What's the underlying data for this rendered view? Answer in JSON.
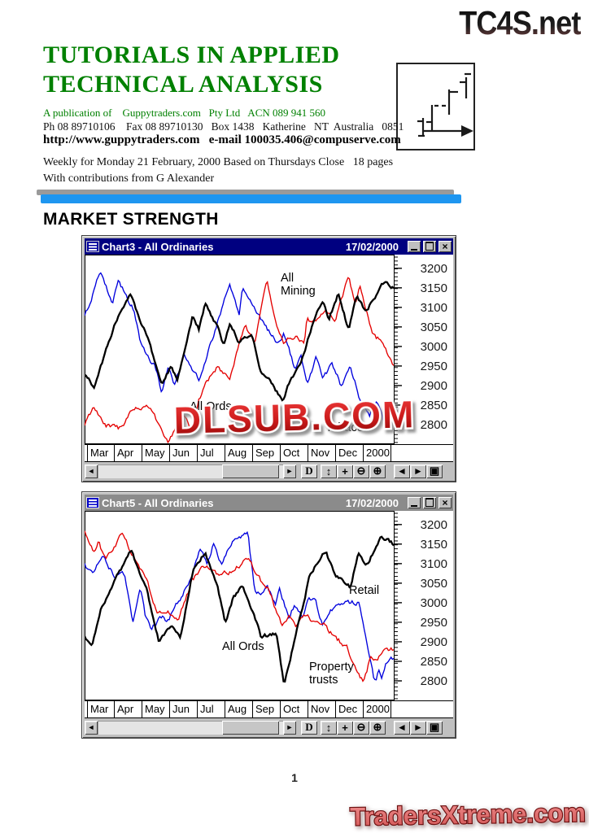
{
  "page": {
    "site_logo_top": "TC4S.net",
    "title_line1": "TUTORIALS IN APPLIED",
    "title_line2": "TECHNICAL ANALYSIS",
    "publisher_line": "A publication of    Guppytraders.com   Pty Ltd   ACN 089 941 560",
    "contact_line": "Ph 08 89710106    Fax 08 89710130   Box 1438   Katherine   NT  Australia   0851",
    "web_line": "http://www.guppytraders.com   e-mail 100035.406@compuserve.com",
    "issue_line": "Weekly for Monday 21 February, 2000 Based on Thursdays Close   18 pages",
    "contrib_line": "With contributions from G Alexander",
    "section_heading": "MARKET STRENGTH",
    "watermark": "DLSUB.COM",
    "page_number": "1",
    "site_logo_bottom": "TradersXtreme.com"
  },
  "colors": {
    "title_green": "#008000",
    "divider_blue": "#1e96f0",
    "titlebar_active": "#000080",
    "titlebar_inactive": "#8b8b8b",
    "watermark_red": "#c41b1b",
    "series_black": "#000000",
    "series_red": "#e40000",
    "series_blue": "#0000dd"
  },
  "icons": {
    "minimize": "_",
    "maximize": "",
    "close": "×",
    "scroll_left": "◄",
    "scroll_right": "►",
    "vertical_scale": "↕",
    "pan": "+",
    "zoom_out": "⊖",
    "zoom_in": "⊕",
    "prev_chart": "◄",
    "next_chart": "►",
    "window_tile": "▣"
  },
  "toolbar": {
    "d_label": "D"
  },
  "windows": [
    {
      "title": "Chart3 - All Ordinaries",
      "date": "17/02/2000",
      "active": true
    },
    {
      "title": "Chart5 - All Ordinaries",
      "date": "17/02/2000",
      "active": false
    }
  ],
  "chart_data": [
    {
      "type": "line",
      "title": "Chart3 - All Ordinaries",
      "x_labels": [
        "Mar",
        "Apr",
        "May",
        "Jun",
        "Jul",
        "Aug",
        "Sep",
        "Oct",
        "Nov",
        "Dec",
        "2000"
      ],
      "ylim": [
        2750,
        3235
      ],
      "yticks": [
        3200,
        3150,
        3100,
        3050,
        3000,
        2950,
        2900,
        2850,
        2800
      ],
      "grid": false,
      "legend": "inline-annotations",
      "series": [
        {
          "name": "Tobacco",
          "color": "#0000dd",
          "anchors": [
            [
              0,
              3075
            ],
            [
              0.05,
              3190
            ],
            [
              0.09,
              3110
            ],
            [
              0.11,
              3165
            ],
            [
              0.16,
              3095
            ],
            [
              0.18,
              3012
            ],
            [
              0.23,
              2943
            ],
            [
              0.25,
              2881
            ],
            [
              0.27,
              2950
            ],
            [
              0.29,
              2894
            ],
            [
              0.32,
              2977
            ],
            [
              0.37,
              2915
            ],
            [
              0.41,
              3012
            ],
            [
              0.47,
              3160
            ],
            [
              0.5,
              3081
            ],
            [
              0.51,
              3150
            ],
            [
              0.56,
              3081
            ],
            [
              0.62,
              3012
            ],
            [
              0.645,
              3033
            ],
            [
              0.68,
              2943
            ],
            [
              0.7,
              2977
            ],
            [
              0.72,
              2908
            ],
            [
              0.75,
              2971
            ],
            [
              0.77,
              2915
            ],
            [
              0.8,
              2955
            ],
            [
              0.83,
              2900
            ],
            [
              0.86,
              2945
            ],
            [
              0.89,
              2868
            ],
            [
              0.92,
              2820
            ],
            [
              0.945,
              2858
            ],
            [
              0.97,
              2800
            ],
            [
              1,
              2835
            ]
          ]
        },
        {
          "name": "All Mining",
          "color": "#e40000",
          "anchors": [
            [
              0,
              2798
            ],
            [
              0.03,
              2845
            ],
            [
              0.07,
              2800
            ],
            [
              0.12,
              2790
            ],
            [
              0.15,
              2830
            ],
            [
              0.2,
              2852
            ],
            [
              0.25,
              2790
            ],
            [
              0.27,
              2757
            ],
            [
              0.32,
              2825
            ],
            [
              0.35,
              2783
            ],
            [
              0.37,
              2867
            ],
            [
              0.4,
              2915
            ],
            [
              0.43,
              2950
            ],
            [
              0.47,
              2915
            ],
            [
              0.5,
              3010
            ],
            [
              0.52,
              3060
            ],
            [
              0.55,
              3000
            ],
            [
              0.59,
              3175
            ],
            [
              0.62,
              3054
            ],
            [
              0.645,
              3012
            ],
            [
              0.68,
              3026
            ],
            [
              0.71,
              3012
            ],
            [
              0.72,
              3075
            ],
            [
              0.74,
              3060
            ],
            [
              0.78,
              3090
            ],
            [
              0.81,
              3065
            ],
            [
              0.855,
              3180
            ],
            [
              0.875,
              3110
            ],
            [
              0.89,
              3150
            ],
            [
              0.93,
              3033
            ],
            [
              0.96,
              3012
            ],
            [
              1,
              2955
            ]
          ]
        },
        {
          "name": "All Ords",
          "color": "#000000",
          "anchors": [
            [
              0,
              2930
            ],
            [
              0.03,
              2895
            ],
            [
              0.07,
              2990
            ],
            [
              0.1,
              3060
            ],
            [
              0.15,
              3135
            ],
            [
              0.18,
              3060
            ],
            [
              0.2,
              3030
            ],
            [
              0.25,
              2905
            ],
            [
              0.28,
              2950
            ],
            [
              0.3,
              2910
            ],
            [
              0.35,
              3080
            ],
            [
              0.37,
              3045
            ],
            [
              0.39,
              3110
            ],
            [
              0.43,
              3050
            ],
            [
              0.45,
              3000
            ],
            [
              0.47,
              3060
            ],
            [
              0.5,
              3010
            ],
            [
              0.54,
              3035
            ],
            [
              0.57,
              2935
            ],
            [
              0.6,
              2915
            ],
            [
              0.64,
              2857
            ],
            [
              0.66,
              2905
            ],
            [
              0.7,
              2960
            ],
            [
              0.74,
              3065
            ],
            [
              0.77,
              3115
            ],
            [
              0.79,
              3070
            ],
            [
              0.82,
              3135
            ],
            [
              0.855,
              3040
            ],
            [
              0.88,
              3130
            ],
            [
              0.91,
              3090
            ],
            [
              0.95,
              3140
            ],
            [
              0.97,
              3168
            ],
            [
              1,
              3150
            ]
          ]
        }
      ],
      "annotations": [
        {
          "lines": [
            "All",
            "Mining"
          ],
          "x": 0.635,
          "y": 3192
        },
        {
          "lines": [
            "All Ords"
          ],
          "x": 0.34,
          "y": 2862
        },
        {
          "lines": [
            "Tobacco"
          ],
          "x": 0.78,
          "y": 2808
        }
      ]
    },
    {
      "type": "line",
      "title": "Chart5 - All Ordinaries",
      "x_labels": [
        "Mar",
        "Apr",
        "May",
        "Jun",
        "Jul",
        "Aug",
        "Sep",
        "Oct",
        "Nov",
        "Dec",
        "2000"
      ],
      "ylim": [
        2750,
        3235
      ],
      "yticks": [
        3200,
        3150,
        3100,
        3050,
        3000,
        2950,
        2900,
        2850,
        2800
      ],
      "grid": false,
      "legend": "inline-annotations",
      "series": [
        {
          "name": "Retail",
          "color": "#0000dd",
          "anchors": [
            [
              0,
              3096
            ],
            [
              0.025,
              3075
            ],
            [
              0.06,
              3117
            ],
            [
              0.095,
              3068
            ],
            [
              0.13,
              3075
            ],
            [
              0.142,
              3012
            ],
            [
              0.155,
              2950
            ],
            [
              0.18,
              3040
            ],
            [
              0.197,
              2963
            ],
            [
              0.215,
              2937
            ],
            [
              0.25,
              2963
            ],
            [
              0.268,
              2950
            ],
            [
              0.31,
              3012
            ],
            [
              0.347,
              3068
            ],
            [
              0.374,
              3141
            ],
            [
              0.396,
              3100
            ],
            [
              0.417,
              3150
            ],
            [
              0.443,
              3100
            ],
            [
              0.476,
              3158
            ],
            [
              0.528,
              3177
            ],
            [
              0.55,
              3026
            ],
            [
              0.572,
              3020
            ],
            [
              0.59,
              3040
            ],
            [
              0.617,
              2998
            ],
            [
              0.63,
              3033
            ],
            [
              0.66,
              2963
            ],
            [
              0.68,
              2998
            ],
            [
              0.706,
              2963
            ],
            [
              0.723,
              3012
            ],
            [
              0.748,
              3005
            ],
            [
              0.768,
              2943
            ],
            [
              0.813,
              2998
            ],
            [
              0.888,
              3000
            ],
            [
              0.91,
              2908
            ],
            [
              0.935,
              2811
            ],
            [
              0.943,
              2798
            ],
            [
              0.95,
              2831
            ],
            [
              0.96,
              2804
            ],
            [
              0.975,
              2852
            ],
            [
              1,
              2860
            ]
          ]
        },
        {
          "name": "Property trusts",
          "color": "#e40000",
          "anchors": [
            [
              0,
              3185
            ],
            [
              0.03,
              3127
            ],
            [
              0.045,
              3152
            ],
            [
              0.07,
              3110
            ],
            [
              0.124,
              3180
            ],
            [
              0.163,
              3106
            ],
            [
              0.2,
              3060
            ],
            [
              0.234,
              2971
            ],
            [
              0.27,
              2977
            ],
            [
              0.3,
              2950
            ],
            [
              0.347,
              3054
            ],
            [
              0.38,
              3096
            ],
            [
              0.434,
              3072
            ],
            [
              0.47,
              3080
            ],
            [
              0.53,
              3112
            ],
            [
              0.576,
              3047
            ],
            [
              0.59,
              3040
            ],
            [
              0.637,
              2943
            ],
            [
              0.663,
              2963
            ],
            [
              0.684,
              2935
            ],
            [
              0.71,
              2971
            ],
            [
              0.744,
              2950
            ],
            [
              0.77,
              2950
            ],
            [
              0.813,
              2908
            ],
            [
              0.847,
              2888
            ],
            [
              0.864,
              2852
            ],
            [
              0.89,
              2811
            ],
            [
              0.9,
              2798
            ],
            [
              0.926,
              2860
            ],
            [
              0.94,
              2852
            ],
            [
              0.965,
              2873
            ],
            [
              1,
              2882
            ]
          ]
        },
        {
          "name": "All Ords",
          "color": "#000000",
          "anchors": [
            [
              0,
              2915
            ],
            [
              0.025,
              2890
            ],
            [
              0.05,
              2977
            ],
            [
              0.1,
              3060
            ],
            [
              0.15,
              3133
            ],
            [
              0.2,
              3033
            ],
            [
              0.24,
              2902
            ],
            [
              0.28,
              2940
            ],
            [
              0.31,
              2910
            ],
            [
              0.35,
              3081
            ],
            [
              0.39,
              3127
            ],
            [
              0.43,
              3040
            ],
            [
              0.455,
              2945
            ],
            [
              0.48,
              3010
            ],
            [
              0.51,
              3047
            ],
            [
              0.54,
              2988
            ],
            [
              0.57,
              2915
            ],
            [
              0.62,
              2920
            ],
            [
              0.645,
              2790
            ],
            [
              0.68,
              2905
            ],
            [
              0.73,
              3075
            ],
            [
              0.78,
              3133
            ],
            [
              0.81,
              3070
            ],
            [
              0.86,
              3039
            ],
            [
              0.885,
              3129
            ],
            [
              0.91,
              3090
            ],
            [
              0.96,
              3172
            ],
            [
              1,
              3150
            ]
          ]
        }
      ],
      "annotations": [
        {
          "lines": [
            "Retail"
          ],
          "x": 0.855,
          "y": 3048
        },
        {
          "lines": [
            "All Ords"
          ],
          "x": 0.445,
          "y": 2905
        },
        {
          "lines": [
            "Property",
            "trusts"
          ],
          "x": 0.726,
          "y": 2852
        }
      ]
    }
  ]
}
